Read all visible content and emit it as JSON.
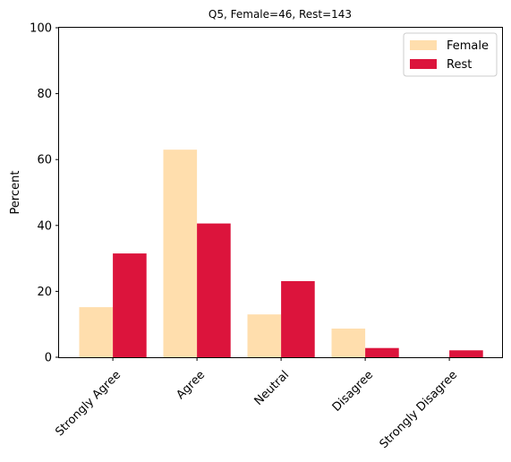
{
  "chart_data": {
    "type": "bar",
    "title": "Q5, Female=46, Rest=143",
    "xlabel": "",
    "ylabel": "Percent",
    "ylim": [
      0,
      100
    ],
    "yticks": [
      0,
      20,
      40,
      60,
      80,
      100
    ],
    "categories": [
      "Strongly Agree",
      "Agree",
      "Neutral",
      "Disagree",
      "Strongly Disagree"
    ],
    "series": [
      {
        "name": "Female",
        "color": "#FFDEAD",
        "values": [
          15.2,
          63.0,
          13.0,
          8.7,
          0.0
        ]
      },
      {
        "name": "Rest",
        "color": "#DC143C",
        "values": [
          31.5,
          40.6,
          23.1,
          2.8,
          2.1
        ]
      }
    ],
    "legend_position": "top-right",
    "grid": false
  }
}
